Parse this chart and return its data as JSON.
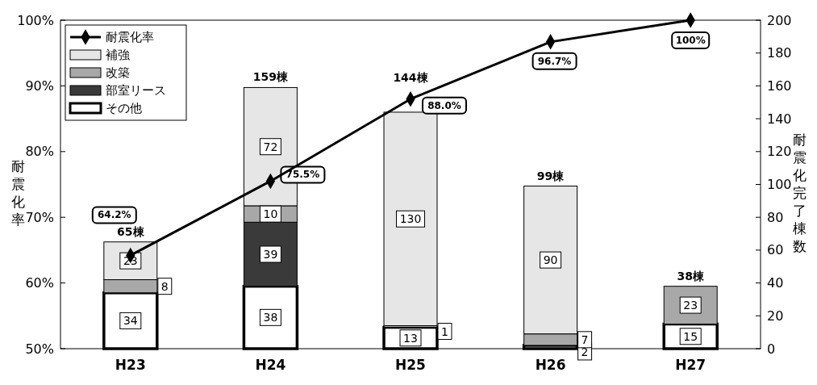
{
  "chart_data": {
    "type": "bar",
    "stacked": true,
    "categories": [
      "H23",
      "H24",
      "H25",
      "H26",
      "H27"
    ],
    "ylabel": "耐震化率",
    "y2label": "耐震化完了棟数",
    "ylim": [
      50,
      100
    ],
    "yticks": [
      {
        "value": 50,
        "label": "50%"
      },
      {
        "value": 60,
        "label": "60%"
      },
      {
        "value": 70,
        "label": "70%"
      },
      {
        "value": 80,
        "label": "80%"
      },
      {
        "value": 90,
        "label": "90%"
      },
      {
        "value": 100,
        "label": "100%"
      }
    ],
    "y2lim": [
      0,
      200
    ],
    "y2ticks": [
      0,
      20,
      40,
      60,
      80,
      100,
      120,
      140,
      160,
      180,
      200
    ],
    "legend": "top left",
    "grid": false,
    "data_labels": true,
    "totals": [
      "65棟",
      "159棟",
      "144棟",
      "99棟",
      "38棟"
    ],
    "series": [
      {
        "name": "その他",
        "axis": "y2",
        "color": "#ffffff",
        "values": [
          34,
          38,
          13,
          2,
          15
        ]
      },
      {
        "name": "部室リース",
        "axis": "y2",
        "color": "#3a3a3a",
        "values": [
          null,
          39,
          null,
          null,
          null
        ]
      },
      {
        "name": "改築",
        "axis": "y2",
        "color": "#a8a8a8",
        "values": [
          8,
          10,
          1,
          7,
          23
        ]
      },
      {
        "name": "補強",
        "axis": "y2",
        "color": "#e6e6e6",
        "values": [
          23,
          72,
          130,
          90,
          null
        ]
      },
      {
        "name": "耐震化率",
        "type": "line",
        "axis": "y",
        "color": "#000000",
        "marker": "diamond",
        "line_style": "solid",
        "values": [
          64.2,
          75.5,
          88.0,
          96.7,
          100
        ],
        "value_labels": [
          "64.2%",
          "75.5%",
          "88.0%",
          "96.7%",
          "100%"
        ]
      }
    ]
  }
}
